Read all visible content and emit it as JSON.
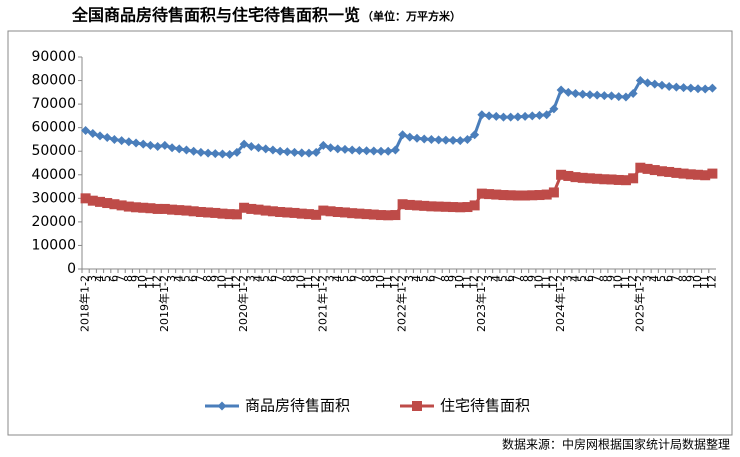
{
  "chart_data": {
    "type": "line",
    "title": "全国商品房待售面积与住宅待售面积一览",
    "subtitle": "（单位：万平方米）",
    "source": "数据来源：中房网根据国家统计局数据整理",
    "categories": [
      "2018年1-2",
      "3",
      "4",
      "5",
      "6",
      "7",
      "8",
      "9",
      "10",
      "11",
      "12",
      "2019年1-2",
      "3",
      "4",
      "5",
      "6",
      "7",
      "8",
      "9",
      "10",
      "11",
      "12",
      "2020年1-2",
      "3",
      "4",
      "5",
      "6",
      "7",
      "8",
      "9",
      "10",
      "11",
      "12",
      "2021年1-2",
      "3",
      "4",
      "5",
      "6",
      "7",
      "8",
      "9",
      "10",
      "11",
      "12",
      "2022年1-2",
      "3",
      "4",
      "5",
      "6",
      "7",
      "8",
      "9",
      "10",
      "11",
      "12",
      "2023年1-2",
      "3",
      "4",
      "5",
      "6",
      "7",
      "8",
      "9",
      "10",
      "11",
      "12",
      "2024年1-2",
      "3",
      "4",
      "5",
      "6",
      "7",
      "8",
      "9",
      "10",
      "11",
      "12",
      "2025年1-2",
      "3",
      "4",
      "5",
      "6",
      "7",
      "8",
      "9",
      "10",
      "11",
      "12"
    ],
    "series": [
      {
        "name": "商品房待售面积",
        "color": "#4a7ebb",
        "marker": "diamond",
        "values": [
          58800,
          57500,
          56500,
          55800,
          55000,
          54500,
          54000,
          53500,
          53000,
          52500,
          52000,
          52500,
          51500,
          51000,
          50500,
          50000,
          49500,
          49200,
          49000,
          48800,
          48600,
          49500,
          53000,
          52000,
          51500,
          51000,
          50500,
          50000,
          49800,
          49500,
          49300,
          49200,
          49500,
          52500,
          51500,
          51000,
          50800,
          50500,
          50300,
          50200,
          50100,
          50000,
          50000,
          50500,
          57000,
          56000,
          55500,
          55200,
          55000,
          54800,
          54700,
          54600,
          54500,
          55000,
          57000,
          65500,
          65000,
          64800,
          64500,
          64500,
          64600,
          64800,
          65000,
          65200,
          65500,
          68000,
          76000,
          75000,
          74500,
          74200,
          74000,
          73800,
          73600,
          73500,
          73200,
          73000,
          74500,
          80000,
          79000,
          78500,
          78000,
          77500,
          77200,
          77000,
          76800,
          76500,
          76400,
          76800
        ]
      },
      {
        "name": "住宅待售面积",
        "color": "#be4b48",
        "marker": "square",
        "values": [
          30000,
          29000,
          28500,
          28000,
          27500,
          27000,
          26500,
          26200,
          26000,
          25800,
          25500,
          25500,
          25200,
          25000,
          24800,
          24500,
          24200,
          24000,
          23800,
          23500,
          23300,
          23200,
          26000,
          25500,
          25200,
          24800,
          24500,
          24200,
          24000,
          23800,
          23500,
          23300,
          23000,
          24800,
          24500,
          24200,
          24000,
          23700,
          23500,
          23300,
          23100,
          22900,
          22800,
          22900,
          27500,
          27200,
          27000,
          26800,
          26600,
          26500,
          26400,
          26300,
          26200,
          26300,
          27000,
          32000,
          31800,
          31600,
          31400,
          31300,
          31200,
          31200,
          31300,
          31400,
          31600,
          32500,
          40000,
          39500,
          39000,
          38700,
          38500,
          38300,
          38100,
          38000,
          37800,
          37700,
          38500,
          43000,
          42500,
          42000,
          41500,
          41200,
          40800,
          40500,
          40200,
          40000,
          39800,
          40500
        ]
      }
    ],
    "ylim": [
      0,
      90000
    ],
    "yticks": [
      0,
      10000,
      20000,
      30000,
      40000,
      50000,
      60000,
      70000,
      80000,
      90000
    ],
    "grid": false,
    "legend": "bottom"
  }
}
